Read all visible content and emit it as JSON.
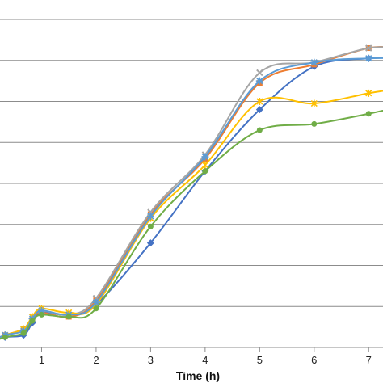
{
  "chart_data": {
    "type": "line",
    "title": "",
    "xlabel": "Time (h)",
    "ylabel": "",
    "xlim": [
      0,
      7.5
    ],
    "ylim": [
      0,
      8
    ],
    "x_ticks": [
      "1",
      "2",
      "3",
      "4",
      "5",
      "6",
      "7"
    ],
    "grid": true,
    "series": [
      {
        "color": "#4472C4",
        "marker": "diamond",
        "points": [
          [
            0,
            0.1
          ],
          [
            0.33,
            0.25
          ],
          [
            0.67,
            0.3
          ],
          [
            0.83,
            0.6
          ],
          [
            1,
            0.85
          ],
          [
            1.5,
            0.8
          ],
          [
            2,
            1.05
          ],
          [
            3,
            2.55
          ],
          [
            4,
            4.3
          ],
          [
            5,
            5.8
          ],
          [
            6,
            6.85
          ],
          [
            7,
            7.05
          ],
          [
            7.5,
            7.05
          ]
        ]
      },
      {
        "color": "#ED7D31",
        "marker": "square",
        "points": [
          [
            0,
            0.1
          ],
          [
            0.33,
            0.3
          ],
          [
            0.67,
            0.45
          ],
          [
            0.83,
            0.7
          ],
          [
            1,
            0.85
          ],
          [
            1.5,
            0.75
          ],
          [
            2,
            1.15
          ],
          [
            3,
            3.25
          ],
          [
            4,
            4.6
          ],
          [
            5,
            6.45
          ],
          [
            6,
            6.9
          ],
          [
            7,
            7.3
          ],
          [
            7.5,
            7.3
          ]
        ]
      },
      {
        "color": "#A5A5A5",
        "marker": "x",
        "points": [
          [
            0,
            0.15
          ],
          [
            0.33,
            0.3
          ],
          [
            0.67,
            0.45
          ],
          [
            0.83,
            0.75
          ],
          [
            1,
            0.9
          ],
          [
            1.5,
            0.8
          ],
          [
            2,
            1.2
          ],
          [
            3,
            3.3
          ],
          [
            4,
            4.7
          ],
          [
            5,
            6.7
          ],
          [
            6,
            6.95
          ],
          [
            7,
            7.3
          ],
          [
            7.5,
            7.3
          ]
        ]
      },
      {
        "color": "#FFC000",
        "marker": "asterisk",
        "points": [
          [
            0,
            0.1
          ],
          [
            0.33,
            0.3
          ],
          [
            0.67,
            0.45
          ],
          [
            0.83,
            0.75
          ],
          [
            1,
            0.95
          ],
          [
            1.5,
            0.85
          ],
          [
            2,
            1.05
          ],
          [
            3,
            3.15
          ],
          [
            4,
            4.45
          ],
          [
            5,
            6.0
          ],
          [
            6,
            5.95
          ],
          [
            7,
            6.2
          ],
          [
            7.5,
            6.3
          ]
        ]
      },
      {
        "color": "#5B9BD5",
        "marker": "star",
        "points": [
          [
            0,
            0.1
          ],
          [
            0.33,
            0.3
          ],
          [
            0.67,
            0.4
          ],
          [
            0.83,
            0.7
          ],
          [
            1,
            0.9
          ],
          [
            1.5,
            0.8
          ],
          [
            2,
            1.1
          ],
          [
            3,
            3.2
          ],
          [
            4,
            4.65
          ],
          [
            5,
            6.5
          ],
          [
            6,
            6.95
          ],
          [
            7,
            7.05
          ],
          [
            7.5,
            7.05
          ]
        ]
      },
      {
        "color": "#70AD47",
        "marker": "circle",
        "points": [
          [
            0,
            0.1
          ],
          [
            0.33,
            0.25
          ],
          [
            0.67,
            0.35
          ],
          [
            0.83,
            0.65
          ],
          [
            1,
            0.8
          ],
          [
            1.5,
            0.75
          ],
          [
            2,
            0.95
          ],
          [
            3,
            2.95
          ],
          [
            4,
            4.3
          ],
          [
            5,
            5.3
          ],
          [
            6,
            5.45
          ],
          [
            7,
            5.7
          ],
          [
            7.5,
            5.85
          ]
        ]
      }
    ]
  }
}
